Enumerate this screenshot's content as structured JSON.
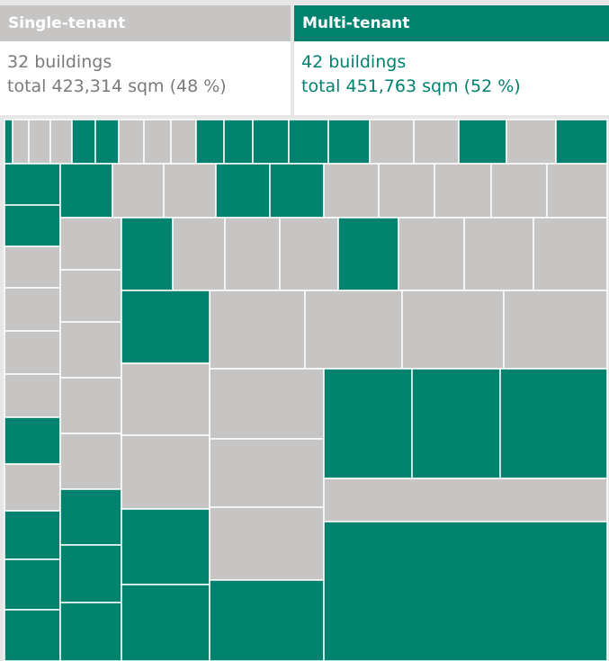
{
  "chart_data": {
    "type": "treemap",
    "groups": [
      {
        "name": "Single-tenant",
        "color": "#c6c5c4",
        "buildings": "32 buildings",
        "total": "total 423,314 sqm (48 %)",
        "text_color": "#7a7a7a"
      },
      {
        "name": "Multi-tenant",
        "color": "#00826f",
        "buildings": "42 buildings",
        "total": "total 451,763 sqm (52 %)",
        "text_color": "#00826f"
      }
    ]
  }
}
